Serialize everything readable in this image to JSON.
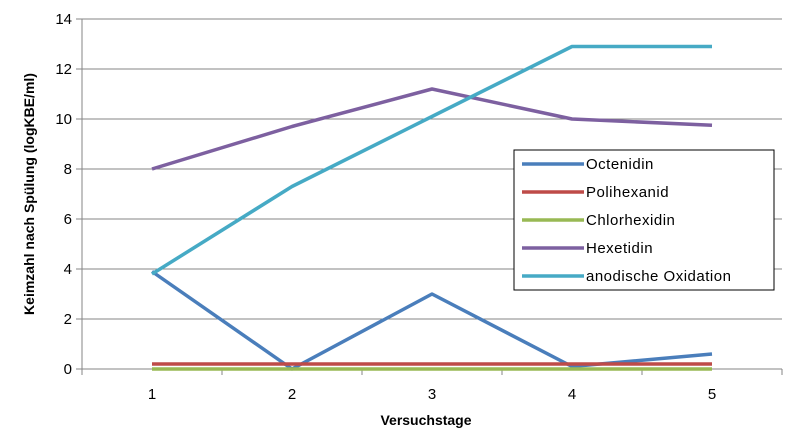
{
  "chart_data": {
    "type": "line",
    "title": "",
    "xlabel": "Versuchstage",
    "ylabel": "Keimzahl nach Spülung  (logKBE/ml)",
    "categories": [
      "1",
      "2",
      "3",
      "4",
      "5"
    ],
    "ylim": [
      0,
      14
    ],
    "yticks": [
      "0",
      "2",
      "4",
      "6",
      "8",
      "10",
      "12",
      "14"
    ],
    "grid": true,
    "legend_position": "right",
    "series": [
      {
        "name": "Octenidin",
        "color": "#4A7EBB",
        "values": [
          3.9,
          0.0,
          3.0,
          0.1,
          0.6
        ]
      },
      {
        "name": "Polihexanid",
        "color": "#BE4B48",
        "values": [
          0.2,
          0.2,
          0.2,
          0.2,
          0.2
        ]
      },
      {
        "name": "Chlorhexidin",
        "color": "#98B954",
        "values": [
          0.0,
          0.0,
          0.0,
          0.0,
          0.0
        ]
      },
      {
        "name": "Hexetidin",
        "color": "#7D60A0",
        "values": [
          8.0,
          9.7,
          11.2,
          10.0,
          9.75
        ]
      },
      {
        "name": "anodische Oxidation",
        "color": "#46AAC5",
        "values": [
          3.8,
          7.3,
          10.1,
          12.9,
          12.9
        ]
      }
    ]
  }
}
